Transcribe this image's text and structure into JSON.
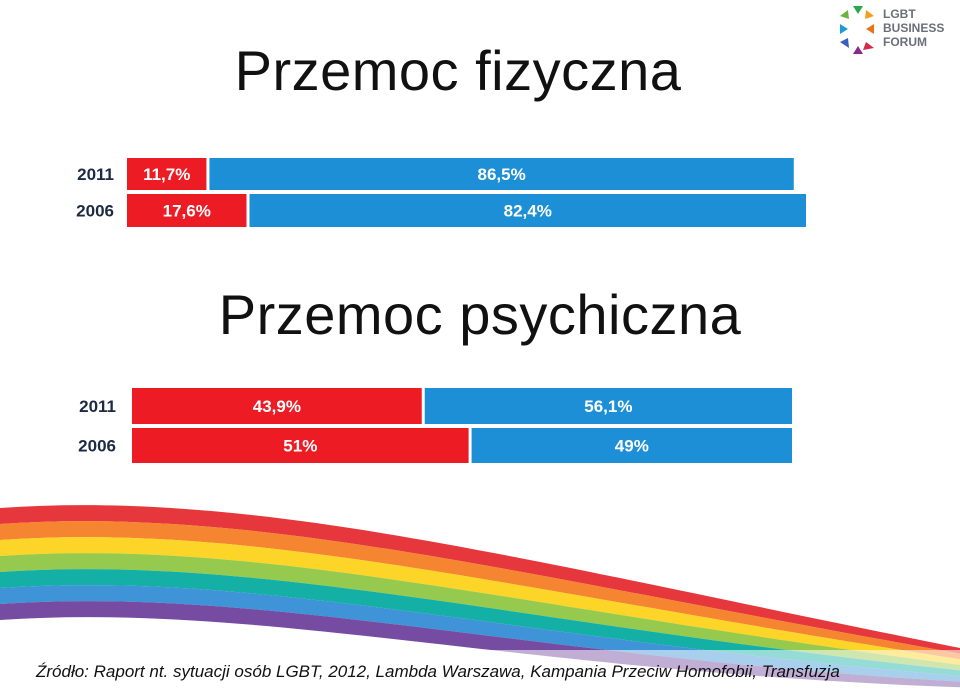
{
  "logo": {
    "lines": [
      "LGBT",
      "BUSINESS",
      "FORUM"
    ]
  },
  "source_text": "Źródło: Raport nt. sytuacji osób LGBT, 2012,  Lambda Warszawa, Kampania Przeciw Homofobii, Transfuzja",
  "colors": {
    "red": "#ed1c24",
    "blue": "#1d8fd6"
  },
  "chart_data": [
    {
      "type": "bar",
      "orientation": "horizontal",
      "stacked": true,
      "title": "Przemoc fizyczna",
      "categories": [
        "2011",
        "2006"
      ],
      "series": [
        {
          "values": [
            11.7,
            17.6
          ],
          "labels": [
            "11,7%",
            "17,6%"
          ],
          "color": "#ed1c24"
        },
        {
          "values": [
            86.5,
            82.4
          ],
          "labels": [
            "86,5%",
            "82,4%"
          ],
          "color": "#1d8fd6"
        }
      ],
      "xlim": [
        0,
        100
      ],
      "grid": false,
      "legend": "none"
    },
    {
      "type": "bar",
      "orientation": "horizontal",
      "stacked": true,
      "title": "Przemoc psychiczna",
      "categories": [
        "2011",
        "2006"
      ],
      "series": [
        {
          "values": [
            43.9,
            51
          ],
          "labels": [
            "43,9%",
            "51%"
          ],
          "color": "#ed1c24"
        },
        {
          "values": [
            56.1,
            49
          ],
          "labels": [
            "56,1%",
            "49%"
          ],
          "color": "#1d8fd6"
        }
      ],
      "xlim": [
        0,
        100
      ],
      "grid": false,
      "legend": "none"
    }
  ]
}
